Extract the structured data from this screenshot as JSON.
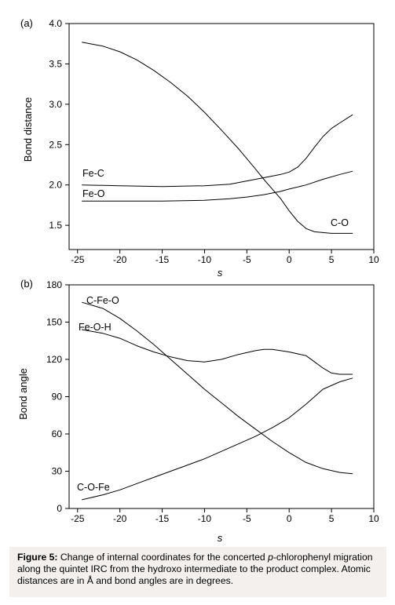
{
  "chart_data": [
    {
      "type": "line",
      "panel_label": "(a)",
      "xlabel": "s",
      "ylabel": "Bond distance",
      "xlim": [
        -26,
        10
      ],
      "ylim": [
        1.2,
        4.0
      ],
      "xticks": [
        -25,
        -20,
        -15,
        -10,
        -5,
        0,
        5,
        10
      ],
      "yticks": [
        1.5,
        2.0,
        2.5,
        3.0,
        3.5,
        4.0
      ],
      "xtick_labels": [
        "-25",
        "-20",
        "-15",
        "-10",
        "-5",
        "0",
        "5",
        "10"
      ],
      "ytick_labels": [
        "1.5",
        "2.0",
        "2.5",
        "3.0",
        "3.5",
        "4.0"
      ],
      "grid": false,
      "series": [
        {
          "name": "Fe-C",
          "x": [
            -24.5,
            -20,
            -15,
            -10,
            -7,
            -5,
            -3,
            -1,
            0,
            1,
            2,
            3,
            4,
            5,
            6,
            7.5
          ],
          "y": [
            2.0,
            1.99,
            1.98,
            1.99,
            2.01,
            2.05,
            2.09,
            2.13,
            2.16,
            2.22,
            2.33,
            2.47,
            2.6,
            2.7,
            2.77,
            2.87
          ]
        },
        {
          "name": "Fe-O",
          "x": [
            -24.5,
            -20,
            -15,
            -10,
            -7,
            -5,
            -3,
            -1,
            0,
            2,
            4,
            6,
            7.5
          ],
          "y": [
            1.8,
            1.8,
            1.8,
            1.81,
            1.83,
            1.85,
            1.88,
            1.92,
            1.95,
            2.0,
            2.07,
            2.13,
            2.17
          ]
        },
        {
          "name": "C-O",
          "x": [
            -24.5,
            -22,
            -20,
            -18,
            -16,
            -14,
            -12,
            -10,
            -8,
            -6,
            -4,
            -3,
            -2,
            -1,
            0,
            1,
            2,
            3,
            4,
            5,
            6,
            7.5
          ],
          "y": [
            3.77,
            3.72,
            3.65,
            3.55,
            3.42,
            3.27,
            3.1,
            2.9,
            2.68,
            2.45,
            2.2,
            2.07,
            1.95,
            1.83,
            1.68,
            1.55,
            1.46,
            1.42,
            1.41,
            1.4,
            1.4,
            1.4
          ]
        }
      ],
      "annotations": [
        "Fe-C",
        "Fe-O",
        "C-O"
      ]
    },
    {
      "type": "line",
      "panel_label": "(b)",
      "xlabel": "s",
      "ylabel": "Bond angle",
      "xlim": [
        -26,
        10
      ],
      "ylim": [
        0,
        180
      ],
      "xticks": [
        -25,
        -20,
        -15,
        -10,
        -5,
        0,
        5,
        10
      ],
      "yticks": [
        0,
        30,
        60,
        90,
        120,
        150,
        180
      ],
      "xtick_labels": [
        "-25",
        "-20",
        "-15",
        "-10",
        "-5",
        "0",
        "5",
        "10"
      ],
      "ytick_labels": [
        "0",
        "30",
        "60",
        "90",
        "120",
        "150",
        "180"
      ],
      "grid": false,
      "series": [
        {
          "name": "C-Fe-O",
          "x": [
            -24.5,
            -22,
            -20,
            -18,
            -16,
            -14,
            -12,
            -10,
            -8,
            -6,
            -4,
            -2,
            0,
            2,
            4,
            6,
            7.5
          ],
          "y": [
            166,
            161,
            153,
            143,
            132,
            120,
            108,
            96,
            85,
            74,
            64,
            54,
            45,
            37,
            32,
            29,
            28
          ]
        },
        {
          "name": "Fe-O-H",
          "x": [
            -24.5,
            -22,
            -20,
            -18,
            -16,
            -14,
            -12,
            -10,
            -8,
            -6,
            -4,
            -3,
            -2,
            0,
            2,
            3,
            4,
            5,
            6,
            7.5
          ],
          "y": [
            144,
            141,
            137,
            131,
            126,
            122,
            119,
            118,
            120,
            124,
            127,
            128,
            128,
            126,
            123,
            118,
            113,
            109,
            108,
            108
          ]
        },
        {
          "name": "C-O-Fe",
          "x": [
            -24.5,
            -22,
            -20,
            -18,
            -16,
            -14,
            -12,
            -10,
            -8,
            -6,
            -4,
            -2,
            0,
            2,
            4,
            6,
            7.5
          ],
          "y": [
            7,
            11,
            15,
            20,
            25,
            30,
            35,
            40,
            46,
            52,
            58,
            65,
            73,
            84,
            96,
            102,
            105
          ]
        }
      ],
      "annotations": [
        "C-Fe-O",
        "Fe-O-H",
        "C-O-Fe"
      ]
    }
  ],
  "caption": {
    "label": "Figure 5:",
    "part1": " Change of internal coordinates for the concerted ",
    "italic": "p",
    "part2": "-chlorophenyl migration along the quintet IRC from the hydroxo intermediate to the product complex. Atomic distances are in Å and bond angles are in degrees."
  },
  "colors": {
    "line": "#000000",
    "caption_bg": "#f3f0ee"
  }
}
